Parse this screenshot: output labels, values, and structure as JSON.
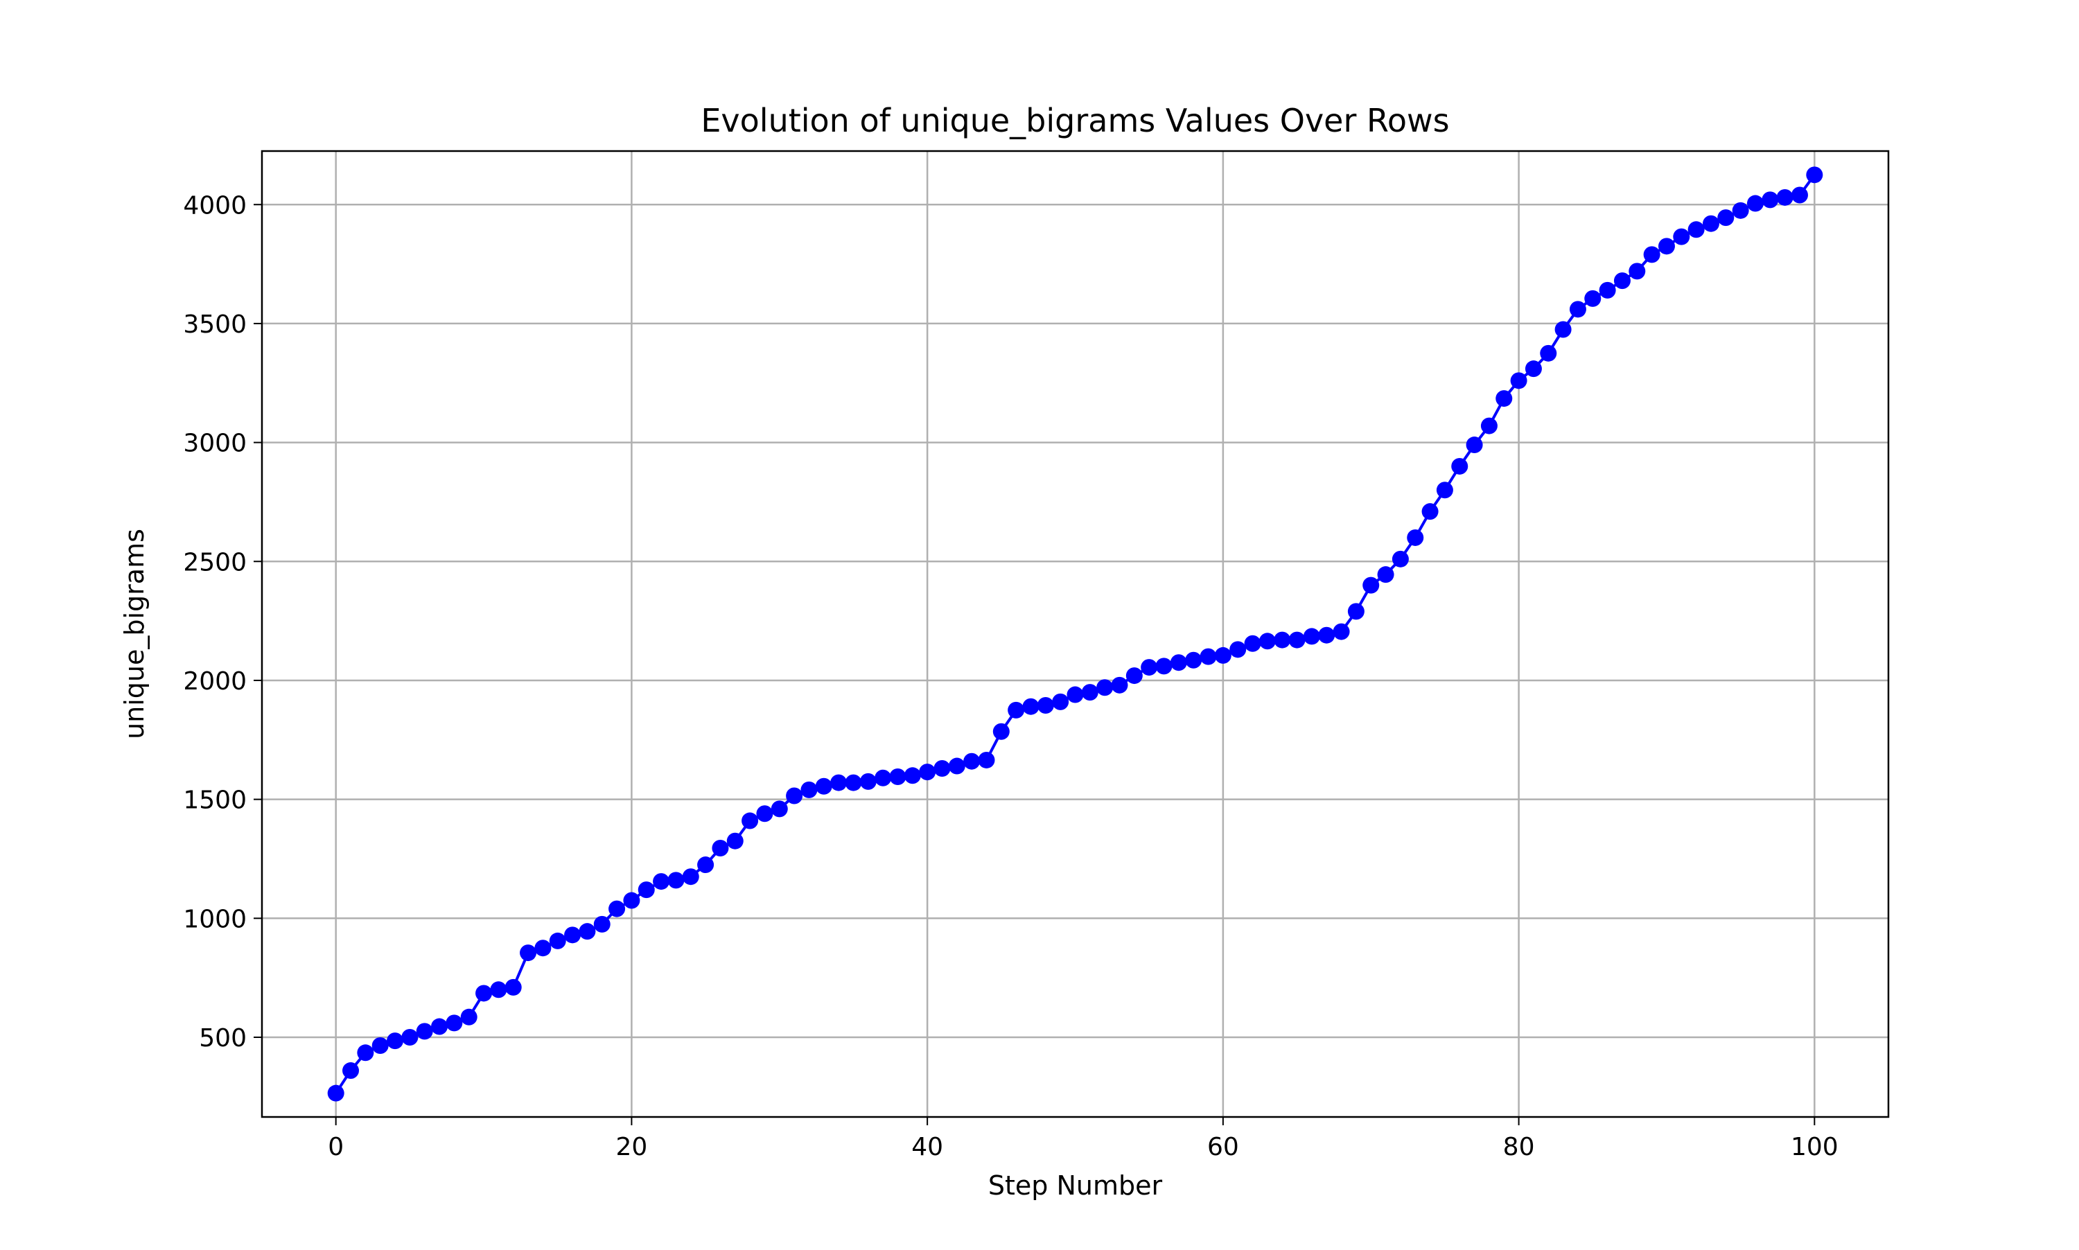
{
  "chart_data": {
    "type": "line",
    "title": "Evolution of unique_bigrams Values Over Rows",
    "xlabel": "Step Number",
    "ylabel": "unique_bigrams",
    "xlim": [
      -5,
      105
    ],
    "ylim": [
      165,
      4225
    ],
    "x_ticks": [
      0,
      20,
      40,
      60,
      80,
      100
    ],
    "y_ticks": [
      500,
      1000,
      1500,
      2000,
      2500,
      3000,
      3500,
      4000
    ],
    "grid": true,
    "colors": {
      "line": "#0000ff",
      "marker": "#0000ff",
      "grid": "#b0b0b0",
      "frame": "#000000"
    },
    "marker": "circle",
    "x": [
      0,
      1,
      2,
      3,
      4,
      5,
      6,
      7,
      8,
      9,
      10,
      11,
      12,
      13,
      14,
      15,
      16,
      17,
      18,
      19,
      20,
      21,
      22,
      23,
      24,
      25,
      26,
      27,
      28,
      29,
      30,
      31,
      32,
      33,
      34,
      35,
      36,
      37,
      38,
      39,
      40,
      41,
      42,
      43,
      44,
      45,
      46,
      47,
      48,
      49,
      50,
      51,
      52,
      53,
      54,
      55,
      56,
      57,
      58,
      59,
      60,
      61,
      62,
      63,
      64,
      65,
      66,
      67,
      68,
      69,
      70,
      71,
      72,
      73,
      74,
      75,
      76,
      77,
      78,
      79,
      80,
      81,
      82,
      83,
      84,
      85,
      86,
      87,
      88,
      89,
      90,
      91,
      92,
      93,
      94,
      95,
      96,
      97,
      98,
      99,
      100
    ],
    "series": [
      {
        "values": [
          265,
          360,
          435,
          465,
          485,
          500,
          525,
          545,
          560,
          585,
          685,
          700,
          710,
          855,
          875,
          905,
          930,
          945,
          975,
          1040,
          1075,
          1120,
          1155,
          1160,
          1175,
          1225,
          1295,
          1325,
          1410,
          1440,
          1460,
          1515,
          1540,
          1555,
          1570,
          1570,
          1575,
          1590,
          1595,
          1600,
          1615,
          1630,
          1640,
          1660,
          1665,
          1785,
          1875,
          1890,
          1895,
          1910,
          1940,
          1950,
          1970,
          1980,
          2020,
          2055,
          2060,
          2075,
          2085,
          2100,
          2105,
          2130,
          2155,
          2165,
          2170,
          2170,
          2185,
          2190,
          2205,
          2290,
          2400,
          2445,
          2510,
          2600,
          2710,
          2800,
          2900,
          2990,
          3070,
          3185,
          3260,
          3310,
          3375,
          3475,
          3560,
          3605,
          3640,
          3680,
          3720,
          3790,
          3825,
          3865,
          3895,
          3920,
          3945,
          3975,
          4005,
          4020,
          4030,
          4040,
          4125
        ]
      }
    ]
  }
}
